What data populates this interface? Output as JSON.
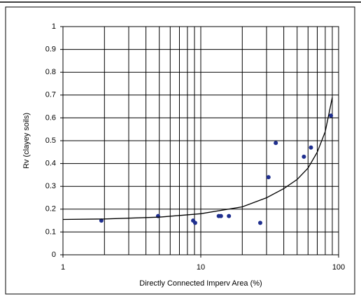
{
  "chart_data": {
    "type": "scatter",
    "x_label": "Directly Connected Imperv Area (%)",
    "y_label": "Rv (clayey soils)",
    "x_log": true,
    "xlim": [
      1,
      100
    ],
    "xticks": [
      1,
      10,
      100
    ],
    "x_minor_grid": [
      2,
      3,
      4,
      5,
      6,
      7,
      8,
      9,
      20,
      30,
      40,
      50,
      60,
      70,
      80,
      90
    ],
    "ylim": [
      0,
      1
    ],
    "yticks": [
      0,
      0.1,
      0.2,
      0.3,
      0.4,
      0.5,
      0.6,
      0.7,
      0.8,
      0.9,
      1
    ],
    "grid": true,
    "series": [
      {
        "style": "markers",
        "color": "#1f2f8f",
        "x": [
          1.9,
          4.9,
          8.8,
          9.1,
          13.5,
          14,
          16,
          27,
          31,
          35,
          56,
          63,
          88
        ],
        "values": [
          0.15,
          0.17,
          0.15,
          0.14,
          0.17,
          0.17,
          0.17,
          0.14,
          0.34,
          0.49,
          0.43,
          0.47,
          0.61
        ]
      },
      {
        "style": "line",
        "color": "#000000",
        "x": [
          1,
          2,
          5,
          10,
          20,
          30,
          40,
          50,
          60,
          70,
          80,
          90
        ],
        "values": [
          0.155,
          0.157,
          0.165,
          0.18,
          0.21,
          0.25,
          0.29,
          0.33,
          0.38,
          0.45,
          0.54,
          0.69
        ]
      }
    ]
  }
}
